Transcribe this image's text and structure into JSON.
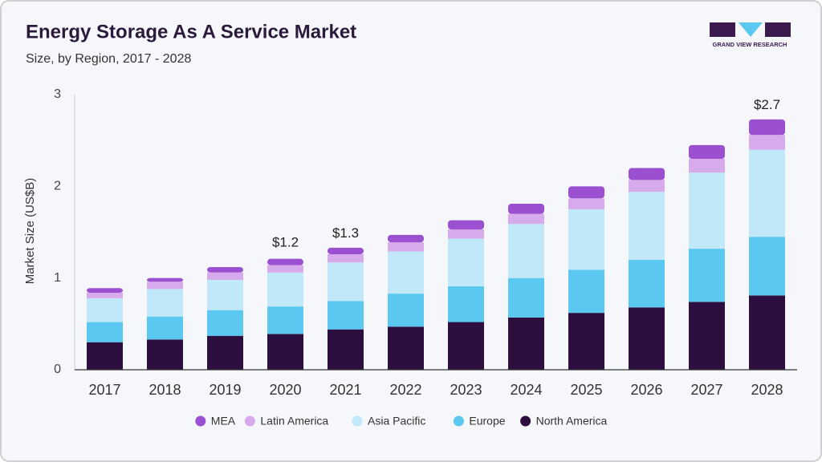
{
  "chart_data": {
    "type": "stacked_bar",
    "title": "Energy Storage As A Service Market",
    "subtitle": "Size, by Region, 2017 - 2028",
    "y_label": "Market Size (US$B)",
    "logo_text": "GRAND VIEW RESEARCH",
    "categories": [
      "2017",
      "2018",
      "2019",
      "2020",
      "2021",
      "2022",
      "2023",
      "2024",
      "2025",
      "2026",
      "2027",
      "2028"
    ],
    "series": [
      {
        "name": "MEA",
        "color": "#9b4fd1",
        "values": [
          0.05,
          0.04,
          0.06,
          0.07,
          0.07,
          0.08,
          0.1,
          0.11,
          0.13,
          0.13,
          0.15,
          0.17
        ]
      },
      {
        "name": "Latin America",
        "color": "#d7aaeb",
        "values": [
          0.06,
          0.08,
          0.08,
          0.08,
          0.09,
          0.1,
          0.1,
          0.11,
          0.12,
          0.13,
          0.15,
          0.16
        ]
      },
      {
        "name": "Asia Pacific",
        "color": "#c0e8f9",
        "values": [
          0.26,
          0.3,
          0.33,
          0.37,
          0.42,
          0.46,
          0.52,
          0.59,
          0.66,
          0.74,
          0.83,
          0.95
        ]
      },
      {
        "name": "Europe",
        "color": "#5bc8f1",
        "values": [
          0.22,
          0.25,
          0.28,
          0.3,
          0.31,
          0.36,
          0.39,
          0.43,
          0.47,
          0.52,
          0.58,
          0.64
        ]
      },
      {
        "name": "North America",
        "color": "#2d0f3f",
        "values": [
          0.3,
          0.33,
          0.37,
          0.39,
          0.44,
          0.47,
          0.52,
          0.57,
          0.62,
          0.68,
          0.74,
          0.81
        ]
      }
    ],
    "annotations": [
      {
        "text": "$1.2",
        "x": "2020",
        "value": 1.2
      },
      {
        "text": "$1.3",
        "x": "2021",
        "value": 1.3
      },
      {
        "text": "$2.7",
        "x": "2028",
        "value": 2.7
      }
    ],
    "ylim": [
      0,
      3
    ],
    "yticks": [
      0,
      1,
      2,
      3
    ],
    "grid": false
  }
}
